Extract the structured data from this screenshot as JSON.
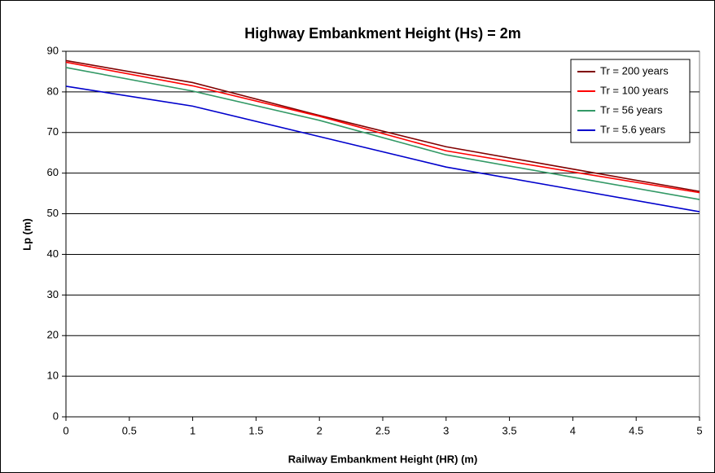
{
  "chart_data": {
    "type": "line",
    "title": "Highway Embankment Height (Hs) = 2m",
    "x_label": "Railway Embankment Height (HR) (m)",
    "y_label": "Lp (m)",
    "x": [
      0,
      1,
      2,
      3,
      4,
      5
    ],
    "series": [
      {
        "name": "Tr = 200 years",
        "color": "#800000",
        "values": [
          87.7,
          82.3,
          74.2,
          66.5,
          61,
          55.5
        ]
      },
      {
        "name": "Tr = 100 years",
        "color": "#ff0000",
        "values": [
          87.3,
          81.5,
          74,
          65.5,
          60.3,
          55.2
        ]
      },
      {
        "name": "Tr = 56 years",
        "color": "#339966",
        "values": [
          86,
          80.2,
          73,
          64.5,
          59,
          53.5
        ]
      },
      {
        "name": "Tr = 5.6 years",
        "color": "#0000cc",
        "values": [
          81.4,
          76.5,
          69,
          61.5,
          56,
          50.5
        ]
      }
    ],
    "xlim": [
      0,
      5
    ],
    "xticks": [
      0,
      0.5,
      1,
      1.5,
      2,
      2.5,
      3,
      3.5,
      4,
      4.5,
      5
    ],
    "ylim": [
      0,
      90
    ],
    "yticks": [
      0,
      10,
      20,
      30,
      40,
      50,
      60,
      70,
      80,
      90
    ],
    "grid": true,
    "legend": "top-right"
  }
}
